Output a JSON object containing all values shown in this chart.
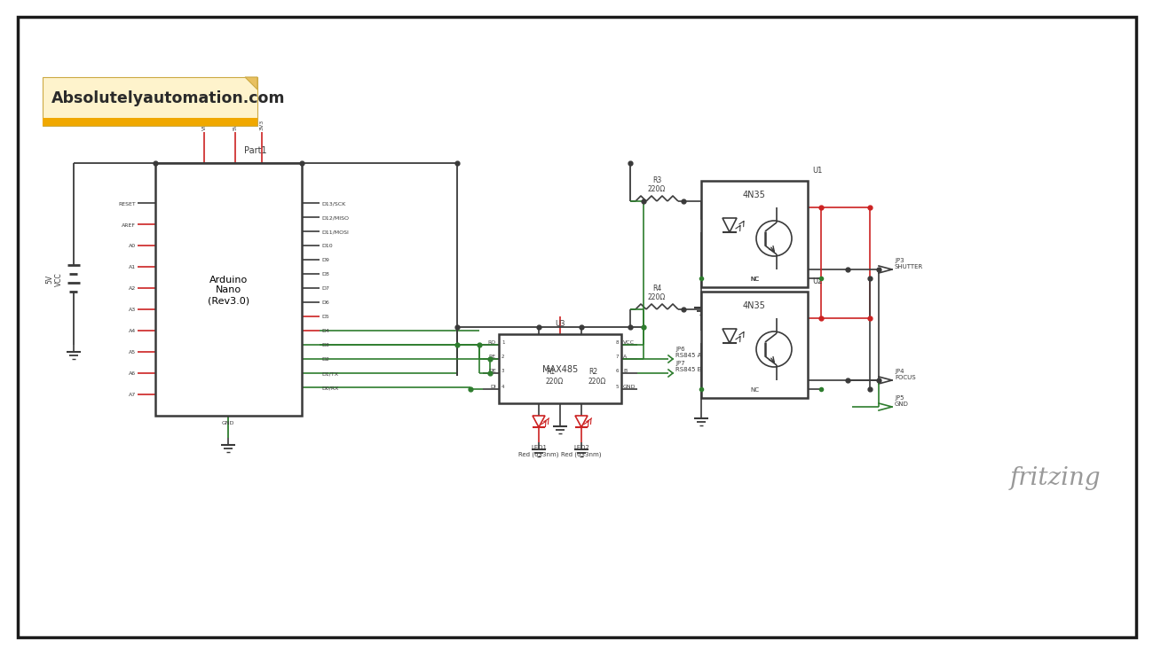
{
  "bg_color": "#ffffff",
  "border_color": "#1a1a1a",
  "title_text": "Absolutelyautomation.com",
  "title_bg": "#fef3cc",
  "title_stripe": "#f0a800",
  "fritzing_text": "fritzing",
  "schematic_line_color": "#3a3a3a",
  "green_wire": "#2e7d2e",
  "red_wire": "#cc2222",
  "dark_red": "#8b0000",
  "note_text": "Part1",
  "arduino_label": "Arduino\nNano\n(Rev3.0)",
  "max485_label": "MAX485",
  "u1_label": "U1",
  "u2_label": "U2",
  "u3_label": "U3",
  "4n35_label": "4N35",
  "r3_label": "R3\n220Ω",
  "r4_label": "R4\n220Ω",
  "r1_label": "R1\n220Ω",
  "r2_label": "R2\n220Ω",
  "led1_label": "LED1\nRed (633nm)",
  "led2_label": "LED2\nRed (633nm)",
  "ip3_label": "JP3\nSHUTTER",
  "ip4_label": "JP4\nFOCUS",
  "ip5_label": "JP5\nGND",
  "ip6_label": "JP6\nRS845 A",
  "ip7_label": "JP7\nRS845 B",
  "left_pins": [
    "RESET",
    "AREF",
    "A0",
    "A1",
    "A2",
    "A3",
    "A4",
    "A5",
    "A6",
    "A7"
  ],
  "right_pins": [
    "D13/SCK",
    "D12/MISO",
    "D11/MOSI",
    "D10",
    "D9",
    "D8",
    "D7",
    "D6",
    "D5",
    "D4",
    "D3",
    "D2",
    "D1/TX",
    "D0/RX"
  ],
  "top_pins": [
    "VIN",
    "5V",
    "3V3"
  ],
  "max485_left": [
    "RO",
    "RE",
    "DE",
    "DI"
  ],
  "max485_right": [
    "VCC",
    "A",
    "B",
    "GND"
  ],
  "wcc_label": "5V\nVCC"
}
